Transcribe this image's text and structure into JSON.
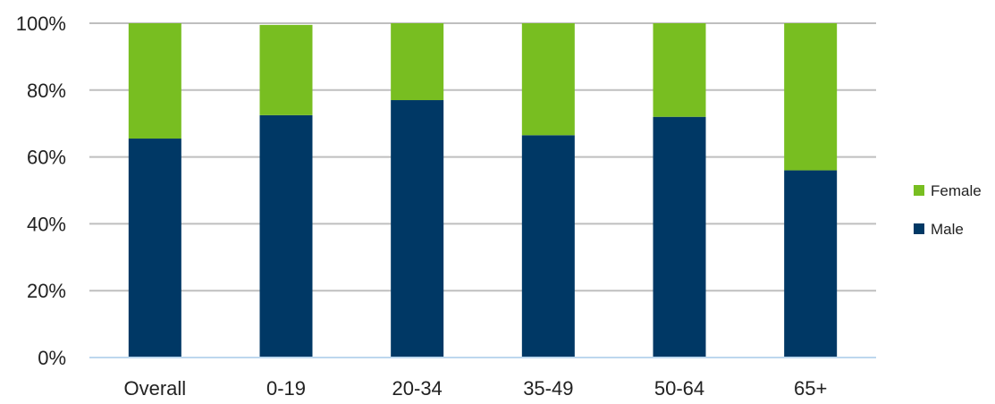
{
  "chart_data": {
    "type": "bar",
    "stacked": true,
    "categories": [
      "Overall",
      "0-19",
      "20-34",
      "35-49",
      "50-64",
      "65+"
    ],
    "series": [
      {
        "name": "Male",
        "values": [
          65.5,
          72.5,
          77,
          66.5,
          72,
          56
        ],
        "color": "#003865"
      },
      {
        "name": "Female",
        "values": [
          34.5,
          27,
          23,
          33.5,
          28,
          44
        ],
        "color": "#78BE21"
      }
    ],
    "yticks": [
      "0%",
      "20%",
      "40%",
      "60%",
      "80%",
      "100%"
    ],
    "ylim": [
      0,
      100
    ],
    "grid": true,
    "legend_position": "right",
    "legend": [
      "Female",
      "Male"
    ]
  }
}
